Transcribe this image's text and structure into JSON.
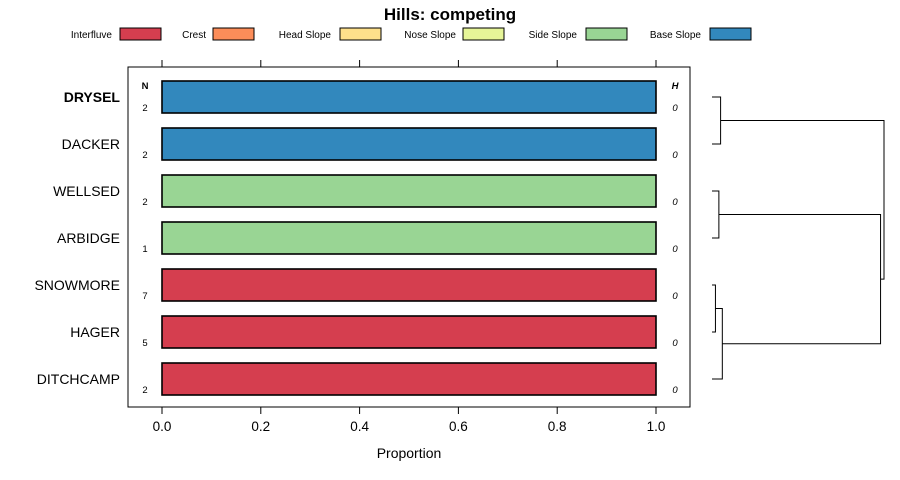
{
  "chart_data": {
    "type": "bar",
    "orientation": "horizontal",
    "stacked": true,
    "title": "Hills: competing",
    "xlabel": "Proportion",
    "ylabel": "",
    "xlim": [
      0,
      1
    ],
    "x_ticks": [
      "0.0",
      "0.2",
      "0.4",
      "0.6",
      "0.8",
      "1.0"
    ],
    "x_tick_values": [
      0,
      0.2,
      0.4,
      0.6,
      0.8,
      1.0
    ],
    "left_header": "N",
    "right_header": "H",
    "legend": [
      {
        "name": "Interfluve",
        "color": "#D53E4F"
      },
      {
        "name": "Crest",
        "color": "#FC8D59"
      },
      {
        "name": "Head Slope",
        "color": "#FEE08B"
      },
      {
        "name": "Nose Slope",
        "color": "#E6F598"
      },
      {
        "name": "Side Slope",
        "color": "#99D594"
      },
      {
        "name": "Base Slope",
        "color": "#3288BD"
      }
    ],
    "rows": [
      {
        "name": "DRYSEL",
        "bold": true,
        "n": "2",
        "h": "0",
        "values": [
          0,
          0,
          0,
          0,
          0,
          1
        ]
      },
      {
        "name": "DACKER",
        "bold": false,
        "n": "2",
        "h": "0",
        "values": [
          0,
          0,
          0,
          0,
          0,
          1
        ]
      },
      {
        "name": "WELLSED",
        "bold": false,
        "n": "2",
        "h": "0",
        "values": [
          0,
          0,
          0,
          0,
          1,
          0
        ]
      },
      {
        "name": "ARBIDGE",
        "bold": false,
        "n": "1",
        "h": "0",
        "values": [
          0,
          0,
          0,
          0,
          1,
          0
        ]
      },
      {
        "name": "SNOWMORE",
        "bold": false,
        "n": "7",
        "h": "0",
        "values": [
          1,
          0,
          0,
          0,
          0,
          0
        ]
      },
      {
        "name": "HAGER",
        "bold": false,
        "n": "5",
        "h": "0",
        "values": [
          1,
          0,
          0,
          0,
          0,
          0
        ]
      },
      {
        "name": "DITCHCAMP",
        "bold": false,
        "n": "2",
        "h": "0",
        "values": [
          1,
          0,
          0,
          0,
          0,
          0
        ]
      }
    ],
    "dendrogram": {
      "merges": [
        {
          "a": "DRYSEL",
          "b": "DACKER",
          "height": 0.05
        },
        {
          "a": "WELLSED",
          "b": "ARBIDGE",
          "height": 0.04
        },
        {
          "a": "SNOWMORE",
          "b": "HAGER",
          "height": 0.02
        },
        {
          "a": "SNOWMORE+HAGER",
          "b": "DITCHCAMP",
          "height": 0.06
        },
        {
          "a": "WELLSED+ARBIDGE",
          "b": "SNOWMORE+HAGER+DITCHCAMP",
          "height": 0.98
        },
        {
          "a": "DRYSEL+DACKER",
          "b": "WELLSED+ARBIDGE+SNOWMORE+HAGER+DITCHCAMP",
          "height": 1.0
        }
      ]
    }
  }
}
